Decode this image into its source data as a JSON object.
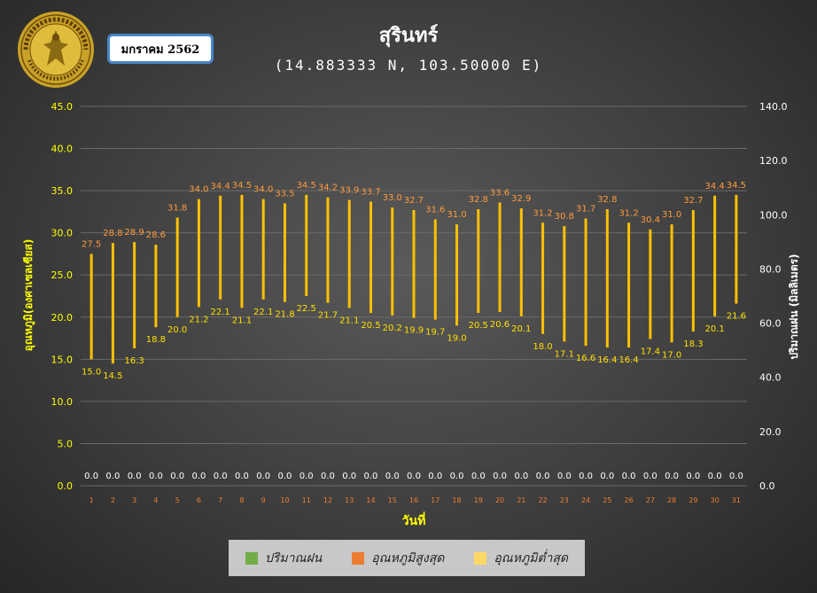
{
  "header": {
    "station": "สุรินทร์",
    "coords": "(14.883333 N, 103.50000 E)",
    "month": "มกราคม 2562",
    "logo_text": "กรมอุตุนิยมวิทยา METEOROLOGICAL DEPARTMENT"
  },
  "colors": {
    "rain": "#70ad47",
    "tmax": "#ed7d31",
    "tmin": "#ffd966",
    "bar": "#ffc000",
    "axis_text": "#ffff00",
    "tmax_label": "#ff9a3c",
    "tmin_label": "#ffe000",
    "grid": "#6a6a6a"
  },
  "chart_data": {
    "type": "bar",
    "title": "สุรินทร์",
    "subtitle": "(14.883333 N, 103.50000 E)",
    "xlabel": "วันที่",
    "ylabel": "อุณหภูมิ(องศาเซลเซียส)",
    "y2label": "ปริมาณฝน (มิลลิเมตร)",
    "ylim": [
      0,
      45
    ],
    "y2lim": [
      0,
      140
    ],
    "yticks": [
      "0.0",
      "5.0",
      "10.0",
      "15.0",
      "20.0",
      "25.0",
      "30.0",
      "35.0",
      "40.0",
      "45.0"
    ],
    "y2ticks": [
      "0.0",
      "20.0",
      "40.0",
      "60.0",
      "80.0",
      "100.0",
      "120.0",
      "140.0"
    ],
    "grid": true,
    "legend_position": "bottom",
    "categories": [
      "1",
      "2",
      "3",
      "4",
      "5",
      "6",
      "7",
      "8",
      "9",
      "10",
      "11",
      "12",
      "13",
      "14",
      "15",
      "16",
      "17",
      "18",
      "19",
      "20",
      "21",
      "22",
      "23",
      "24",
      "25",
      "26",
      "27",
      "28",
      "29",
      "30",
      "31"
    ],
    "series": [
      {
        "name": "ปริมาณฝน",
        "axis": "right",
        "values": [
          0,
          0,
          0,
          0,
          0,
          0,
          0,
          0,
          0,
          0,
          0,
          0,
          0,
          0,
          0,
          0,
          0,
          0,
          0,
          0,
          0,
          0,
          0,
          0,
          0,
          0,
          0,
          0,
          0,
          0,
          0
        ],
        "labels": [
          "0.0",
          "0.0",
          "0.0",
          "0.0",
          "0.0",
          "0.0",
          "0.0",
          "0.0",
          "0.0",
          "0.0",
          "0.0",
          "0.0",
          "0.0",
          "0.0",
          "0.0",
          "0.0",
          "0.0",
          "0.0",
          "0.0",
          "0.0",
          "0.0",
          "0.0",
          "0.0",
          "0.0",
          "0.0",
          "0.0",
          "0.0",
          "0.0",
          "0.0",
          "0.0",
          "0.0"
        ]
      },
      {
        "name": "อุณหภูมิสูงสุด",
        "axis": "left",
        "values": [
          27.5,
          28.8,
          28.9,
          28.6,
          31.8,
          34.0,
          34.4,
          34.5,
          34.0,
          33.5,
          34.5,
          34.2,
          33.9,
          33.7,
          33.0,
          32.7,
          31.6,
          31.0,
          32.8,
          33.6,
          32.9,
          31.2,
          30.8,
          31.7,
          32.8,
          31.2,
          30.4,
          31.0,
          32.7,
          34.4,
          34.5
        ],
        "labels": [
          "27.5",
          "28.8",
          "28.9",
          "28.6",
          "31.8",
          "34.0",
          "34.4",
          "34.5",
          "34.0",
          "33.5",
          "34.5",
          "34.2",
          "33.9",
          "33.7",
          "33.0",
          "32.7",
          "31.6",
          "31.0",
          "32.8",
          "33.6",
          "32.9",
          "31.2",
          "30.8",
          "31.7",
          "32.8",
          "31.2",
          "30.4",
          "31.0",
          "32.7",
          "34.4",
          "34.5"
        ]
      },
      {
        "name": "อุณหภูมิต่ำสุด",
        "axis": "left",
        "values": [
          15.0,
          14.5,
          16.3,
          18.8,
          20.0,
          21.2,
          22.1,
          21.1,
          22.1,
          21.8,
          22.5,
          21.7,
          21.1,
          20.5,
          20.2,
          19.9,
          19.7,
          19.0,
          20.5,
          20.6,
          20.1,
          18.0,
          17.1,
          16.6,
          16.4,
          16.4,
          17.4,
          17.0,
          18.3,
          20.1,
          21.6
        ],
        "labels": [
          "15.0",
          "14.5",
          "16.3",
          "18.8",
          "20.0",
          "21.2",
          "22.1",
          "21.1",
          "22.1",
          "21.8",
          "22.5",
          "21.7",
          "21.1",
          "20.5",
          "20.2",
          "19.9",
          "19.7",
          "19.0",
          "20.5",
          "20.6",
          "20.1",
          "18.0",
          "17.1",
          "16.6",
          "16.4",
          "16.4",
          "17.4",
          "17.0",
          "18.3",
          "20.1",
          "21.6"
        ]
      }
    ]
  },
  "legend": {
    "rain": "ปริมาณฝน",
    "tmax": "อุณหภูมิสูงสุด",
    "tmin": "อุณหภูมิต่ำสุด"
  }
}
